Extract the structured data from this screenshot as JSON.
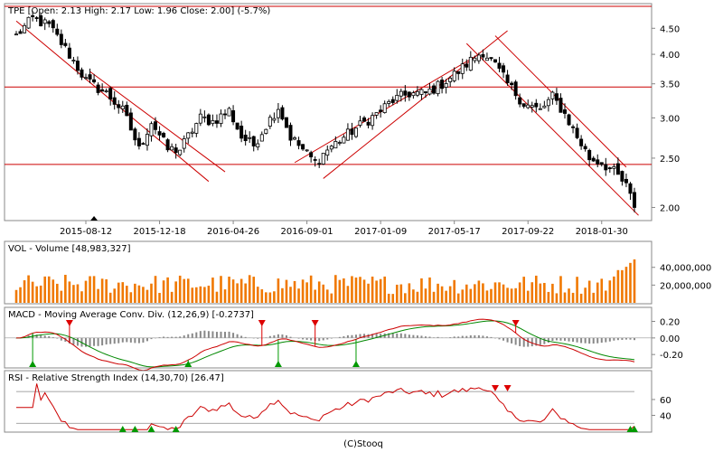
{
  "colors": {
    "candle_up": "#ffffff",
    "candle_down": "#000000",
    "trend": "#cc0000",
    "volume": "#f07800",
    "macd_line": "#cc0000",
    "signal_line": "#008800",
    "histogram": "#888888",
    "rsi_line": "#cc0000",
    "arrow_up": "#009900",
    "arrow_down": "#dd0000"
  },
  "footer": "(C)Stooq",
  "chart_data": [
    {
      "type": "candlestick",
      "title": "TPE [Open: 2.13  High: 2.17  Low: 1.96  Close: 2.00] (-5.7%)",
      "x_ticks": [
        "2015-08-12",
        "2015-12-18",
        "2016-04-26",
        "2016-09-01",
        "2017-01-09",
        "2017-05-17",
        "2017-09-22",
        "2018-01-30"
      ],
      "y_ticks": [
        "4.50",
        "4.00",
        "3.50",
        "3.00",
        "2.50",
        "2.00"
      ],
      "ylim": [
        1.9,
        4.95
      ],
      "y_scale": "log",
      "horizontal_lines": [
        3.45,
        2.43
      ],
      "weeks": 152,
      "x_tick_weeks": [
        17,
        35,
        53,
        71,
        89,
        107,
        125,
        143
      ],
      "close_path": [
        [
          0,
          4.35
        ],
        [
          4,
          4.7
        ],
        [
          8,
          4.55
        ],
        [
          12,
          4.1
        ],
        [
          17,
          3.55
        ],
        [
          22,
          3.35
        ],
        [
          26,
          3.1
        ],
        [
          30,
          2.6
        ],
        [
          33,
          2.95
        ],
        [
          37,
          2.6
        ],
        [
          40,
          2.6
        ],
        [
          45,
          3.0
        ],
        [
          48,
          2.95
        ],
        [
          52,
          3.1
        ],
        [
          55,
          2.75
        ],
        [
          58,
          2.65
        ],
        [
          61,
          2.9
        ],
        [
          64,
          3.15
        ],
        [
          67,
          2.75
        ],
        [
          70,
          2.6
        ],
        [
          73,
          2.45
        ],
        [
          76,
          2.6
        ],
        [
          80,
          2.75
        ],
        [
          84,
          2.9
        ],
        [
          88,
          3.05
        ],
        [
          92,
          3.25
        ],
        [
          96,
          3.35
        ],
        [
          100,
          3.35
        ],
        [
          104,
          3.5
        ],
        [
          108,
          3.7
        ],
        [
          112,
          3.95
        ],
        [
          114,
          4.05
        ],
        [
          117,
          3.8
        ],
        [
          120,
          3.5
        ],
        [
          124,
          3.2
        ],
        [
          128,
          3.1
        ],
        [
          131,
          3.3
        ],
        [
          134,
          3.05
        ],
        [
          137,
          2.75
        ],
        [
          140,
          2.5
        ],
        [
          143,
          2.45
        ],
        [
          146,
          2.35
        ],
        [
          149,
          2.2
        ],
        [
          151,
          2.0
        ]
      ],
      "channels": [
        {
          "from": [
            0,
            4.65
          ],
          "to": [
            47,
            2.25
          ]
        },
        {
          "from": [
            18,
            3.7
          ],
          "to": [
            51,
            2.35
          ]
        },
        {
          "from": [
            68,
            2.45
          ],
          "to": [
            113,
            4.0
          ]
        },
        {
          "from": [
            75,
            2.28
          ],
          "to": [
            120,
            4.45
          ]
        },
        {
          "from": [
            117,
            4.35
          ],
          "to": [
            149,
            2.4
          ]
        },
        {
          "from": [
            110,
            4.2
          ],
          "to": [
            152,
            1.93
          ]
        }
      ],
      "marker_week": 19
    },
    {
      "type": "bar",
      "title": "VOL - Volume [48,983,327]",
      "y_ticks": [
        "40,000,000",
        "20,000,000"
      ],
      "ylim": [
        0,
        55000000
      ]
    },
    {
      "type": "line",
      "title": "MACD - Moving Average Conv. Div. (12,26,9) [-0.2737]",
      "y_ticks": [
        "0.20",
        "0.00",
        "-0.20"
      ],
      "ylim": [
        -0.34,
        0.26
      ],
      "down_arrows": [
        13,
        60,
        73,
        122
      ],
      "up_arrows": [
        4,
        42,
        64,
        83
      ]
    },
    {
      "type": "line",
      "title": "RSI - Relative Strength Index (14,30,70) [26.47]",
      "y_ticks": [
        "60",
        "40"
      ],
      "ylim": [
        20,
        85
      ],
      "reference_lines": [
        70,
        30
      ],
      "down_arrows": [
        117,
        120
      ],
      "up_arrows": [
        26,
        29,
        33,
        39,
        150,
        153
      ]
    }
  ]
}
